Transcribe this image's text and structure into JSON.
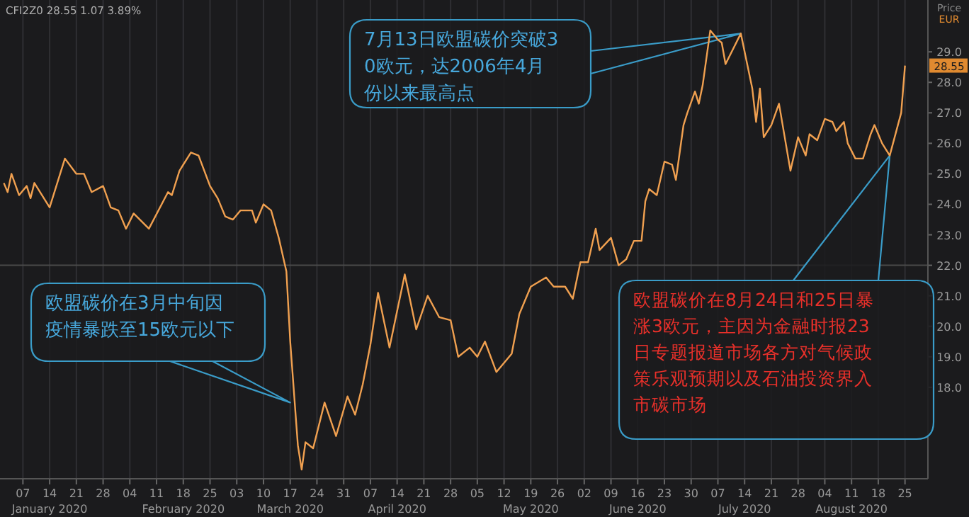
{
  "chart_data": {
    "type": "line",
    "ylabel": "Price EUR",
    "grid": "x",
    "marker": "none",
    "line_style": "solid",
    "xlim": [
      "2020-01-01",
      "2020-08-31"
    ],
    "ylim": [
      15.0,
      30.7
    ],
    "yticks": [
      {
        "value": 18,
        "label": "18.0"
      },
      {
        "value": 19,
        "label": "19.0"
      },
      {
        "value": 20,
        "label": "20.0"
      },
      {
        "value": 21,
        "label": "21.0"
      },
      {
        "value": 22,
        "label": "22.0"
      },
      {
        "value": 23,
        "label": "23.0"
      },
      {
        "value": 24,
        "label": "24.0"
      },
      {
        "value": 25,
        "label": "25.0"
      },
      {
        "value": 26,
        "label": "26.0"
      },
      {
        "value": 27,
        "label": "27.0"
      },
      {
        "value": 28,
        "label": "28.0"
      },
      {
        "value": 29,
        "label": "29.0"
      }
    ],
    "xticks": [
      {
        "value": "2020-01-07",
        "label": "07"
      },
      {
        "value": "2020-01-14",
        "label": "14\nJanuary 2020"
      },
      {
        "value": "2020-01-21",
        "label": "21"
      },
      {
        "value": "2020-01-28",
        "label": "28"
      },
      {
        "value": "2020-02-04",
        "label": "04"
      },
      {
        "value": "2020-02-11",
        "label": "11"
      },
      {
        "value": "2020-02-18",
        "label": "18\nFebruary 2020"
      },
      {
        "value": "2020-02-25",
        "label": "25"
      },
      {
        "value": "2020-03-03",
        "label": "03"
      },
      {
        "value": "2020-03-10",
        "label": "10"
      },
      {
        "value": "2020-03-17",
        "label": "17\nMarch 2020"
      },
      {
        "value": "2020-03-24",
        "label": "24"
      },
      {
        "value": "2020-03-31",
        "label": "31"
      },
      {
        "value": "2020-04-07",
        "label": "07"
      },
      {
        "value": "2020-04-14",
        "label": "14\nApril 2020"
      },
      {
        "value": "2020-04-21",
        "label": "21"
      },
      {
        "value": "2020-04-28",
        "label": "28"
      },
      {
        "value": "2020-05-05",
        "label": "05"
      },
      {
        "value": "2020-05-12",
        "label": "12"
      },
      {
        "value": "2020-05-19",
        "label": "19\nMay 2020"
      },
      {
        "value": "2020-05-26",
        "label": "26"
      },
      {
        "value": "2020-06-02",
        "label": "02"
      },
      {
        "value": "2020-06-09",
        "label": "09"
      },
      {
        "value": "2020-06-16",
        "label": "16\nJune 2020"
      },
      {
        "value": "2020-06-23",
        "label": "23"
      },
      {
        "value": "2020-06-30",
        "label": "30"
      },
      {
        "value": "2020-07-07",
        "label": "07"
      },
      {
        "value": "2020-07-14",
        "label": "14\nJuly 2020"
      },
      {
        "value": "2020-07-21",
        "label": "21"
      },
      {
        "value": "2020-07-28",
        "label": "28"
      },
      {
        "value": "2020-08-04",
        "label": "04"
      },
      {
        "value": "2020-08-11",
        "label": "11\nAugust 2020"
      },
      {
        "value": "2020-08-18",
        "label": "18"
      },
      {
        "value": "2020-08-25",
        "label": "25"
      }
    ],
    "ref_lines": [
      {
        "axis": "y",
        "value": 22,
        "color": "#4a4a4a"
      }
    ],
    "annotations": [
      "CFI2Z0 28.55 1.07 3.89%",
      "7月13日欧盟碳价突破30欧元，达2006年4月份以来最高点",
      {
        "text": "欧盟碳价在3月中旬因疫情暴跌至15欧元以下",
        "x": "2020-03-17",
        "y": 17.5
      },
      "欧盟碳价在8月24日和25日暴涨3欧元，主因为金融时报23日专题报道市场各方对气候政策乐观预期以及石油投资界入市碳市场",
      "28.55"
    ],
    "series": [
      {
        "color": "#f0a050",
        "x": [
          "2020-01-02",
          "2020-01-03",
          "2020-01-04",
          "2020-01-06",
          "2020-01-08",
          "2020-01-09",
          "2020-01-10",
          "2020-01-12",
          "2020-01-14",
          "2020-01-18",
          "2020-01-21",
          "2020-01-23",
          "2020-01-25",
          "2020-01-28",
          "2020-01-30",
          "2020-02-01",
          "2020-02-03",
          "2020-02-05",
          "2020-02-09",
          "2020-02-14",
          "2020-02-15",
          "2020-02-17",
          "2020-02-20",
          "2020-02-22",
          "2020-02-25",
          "2020-02-27",
          "2020-02-29",
          "2020-03-02",
          "2020-03-04",
          "2020-03-07",
          "2020-03-08",
          "2020-03-10",
          "2020-03-12",
          "2020-03-14",
          "2020-03-16",
          "2020-03-17",
          "2020-03-19",
          "2020-03-20",
          "2020-03-21",
          "2020-03-23",
          "2020-03-26",
          "2020-03-29",
          "2020-04-01",
          "2020-04-03",
          "2020-04-05",
          "2020-04-07",
          "2020-04-09",
          "2020-04-12",
          "2020-04-16",
          "2020-04-19",
          "2020-04-22",
          "2020-04-25",
          "2020-04-28",
          "2020-04-30",
          "2020-05-03",
          "2020-05-05",
          "2020-05-07",
          "2020-05-10",
          "2020-05-14",
          "2020-05-16",
          "2020-05-19",
          "2020-05-23",
          "2020-05-25",
          "2020-05-28",
          "2020-05-30",
          "2020-06-01",
          "2020-06-03",
          "2020-06-05",
          "2020-06-06",
          "2020-06-09",
          "2020-06-11",
          "2020-06-13",
          "2020-06-15",
          "2020-06-17",
          "2020-06-18",
          "2020-06-19",
          "2020-06-21",
          "2020-06-23",
          "2020-06-25",
          "2020-06-26",
          "2020-06-28",
          "2020-06-29",
          "2020-07-01",
          "2020-07-02",
          "2020-07-03",
          "2020-07-05",
          "2020-07-07",
          "2020-07-08",
          "2020-07-09",
          "2020-07-13",
          "2020-07-16",
          "2020-07-17",
          "2020-07-18",
          "2020-07-19",
          "2020-07-21",
          "2020-07-23",
          "2020-07-26",
          "2020-07-28",
          "2020-07-30",
          "2020-07-31",
          "2020-08-02",
          "2020-08-04",
          "2020-08-06",
          "2020-08-07",
          "2020-08-09",
          "2020-08-10",
          "2020-08-12",
          "2020-08-14",
          "2020-08-16",
          "2020-08-17",
          "2020-08-19",
          "2020-08-21",
          "2020-08-24",
          "2020-08-25"
        ],
        "values": [
          24.7,
          24.4,
          25.0,
          24.3,
          24.6,
          24.2,
          24.7,
          24.3,
          23.9,
          25.5,
          25.0,
          25.0,
          24.4,
          24.6,
          23.9,
          23.8,
          23.2,
          23.7,
          23.2,
          24.4,
          24.3,
          25.1,
          25.7,
          25.6,
          24.6,
          24.2,
          23.6,
          23.5,
          23.8,
          23.8,
          23.4,
          24.0,
          23.8,
          22.9,
          21.8,
          19.5,
          16.1,
          15.3,
          16.2,
          16.0,
          17.5,
          16.4,
          17.7,
          17.1,
          18.1,
          19.4,
          21.1,
          19.3,
          21.7,
          19.9,
          21.0,
          20.3,
          20.2,
          19.0,
          19.3,
          19.0,
          19.5,
          18.5,
          19.1,
          20.4,
          21.3,
          21.6,
          21.3,
          21.3,
          20.9,
          22.1,
          22.1,
          23.2,
          22.5,
          22.9,
          22.0,
          22.2,
          22.8,
          22.8,
          24.1,
          24.5,
          24.3,
          25.4,
          25.3,
          24.8,
          26.6,
          27.0,
          27.7,
          27.3,
          27.9,
          29.7,
          29.4,
          29.3,
          28.6,
          29.6,
          27.8,
          26.7,
          27.8,
          26.2,
          26.6,
          27.3,
          25.1,
          26.2,
          25.6,
          26.3,
          26.1,
          26.8,
          26.7,
          26.4,
          26.7,
          26.0,
          25.5,
          25.5,
          26.3,
          26.6,
          26.0,
          25.6,
          27.0,
          28.55
        ]
      }
    ]
  }
}
